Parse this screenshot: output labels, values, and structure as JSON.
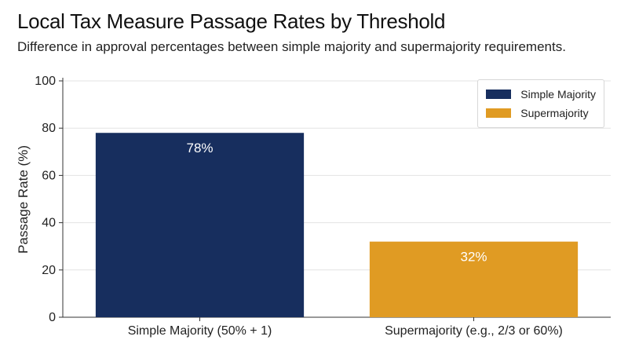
{
  "chart_data": {
    "type": "bar",
    "title": "Local Tax Measure Passage Rates by Threshold",
    "subtitle": "Difference in approval percentages between simple majority and supermajority requirements.",
    "xlabel": "",
    "ylabel": "Passage Rate (%)",
    "ylim": [
      0,
      100
    ],
    "yticks": [
      "0",
      "20",
      "40",
      "60",
      "80",
      "100"
    ],
    "categories": [
      "Simple Majority (50% + 1)",
      "Supermajority (e.g., 2/3 or 60%)"
    ],
    "values": [
      78,
      32
    ],
    "data_labels": [
      "78%",
      "32%"
    ],
    "colors": [
      "#172e5e",
      "#e09b23"
    ],
    "legend": {
      "placement": "top-right",
      "entries": [
        "Simple Majority",
        "Supermajority"
      ]
    },
    "grid": "horizontal"
  }
}
